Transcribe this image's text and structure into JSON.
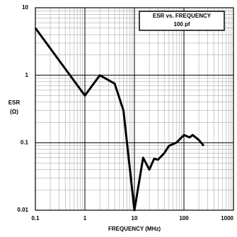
{
  "chart_data": {
    "type": "line",
    "title": "ESR vs. FREQUENCY",
    "subtitle": "100 pf",
    "x_label": "FREQUENCY (MHz)",
    "y_label": [
      "ESR",
      "(Ω)"
    ],
    "x_scale": "log",
    "y_scale": "log",
    "xlim": [
      0.1,
      1000
    ],
    "ylim": [
      0.01,
      10
    ],
    "xticks": [
      0.1,
      1,
      10,
      100,
      1000
    ],
    "yticks": [
      0.01,
      0.1,
      1,
      10
    ],
    "grid": true,
    "series": [
      {
        "name": "ESR",
        "color": "#000000",
        "x": [
          0.1,
          1,
          2,
          4,
          6,
          10,
          15,
          20,
          25,
          30,
          40,
          50,
          70,
          100,
          130,
          150,
          200,
          250
        ],
        "values": [
          5,
          0.5,
          1,
          0.75,
          0.3,
          0.01,
          0.06,
          0.04,
          0.058,
          0.056,
          0.07,
          0.09,
          0.1,
          0.13,
          0.12,
          0.13,
          0.11,
          0.09
        ]
      }
    ]
  }
}
